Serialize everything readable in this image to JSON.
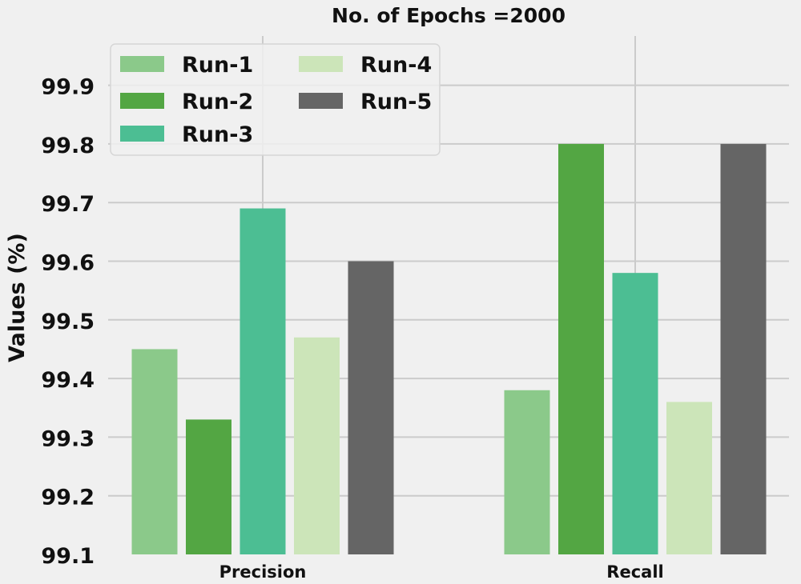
{
  "chart_data": {
    "type": "bar",
    "title": "No. of Epochs =2000",
    "xlabel": "",
    "ylabel": "Values (%)",
    "categories": [
      "Precision",
      "Recall"
    ],
    "ylim": [
      99.1,
      99.95
    ],
    "yticks": [
      "99.1",
      "99.2",
      "99.3",
      "99.4",
      "99.5",
      "99.6",
      "99.7",
      "99.8",
      "99.9"
    ],
    "grid": true,
    "legend_placement": "top-left",
    "series": [
      {
        "name": "Run-1",
        "color": "#8bc98a",
        "values": [
          99.45,
          99.38
        ]
      },
      {
        "name": "Run-2",
        "color": "#53a643",
        "values": [
          99.33,
          99.8
        ]
      },
      {
        "name": "Run-3",
        "color": "#4cbe93",
        "values": [
          99.69,
          99.58
        ]
      },
      {
        "name": "Run-4",
        "color": "#cce5b9",
        "values": [
          99.47,
          99.36
        ]
      },
      {
        "name": "Run-5",
        "color": "#656565",
        "values": [
          99.6,
          99.8
        ]
      }
    ]
  }
}
